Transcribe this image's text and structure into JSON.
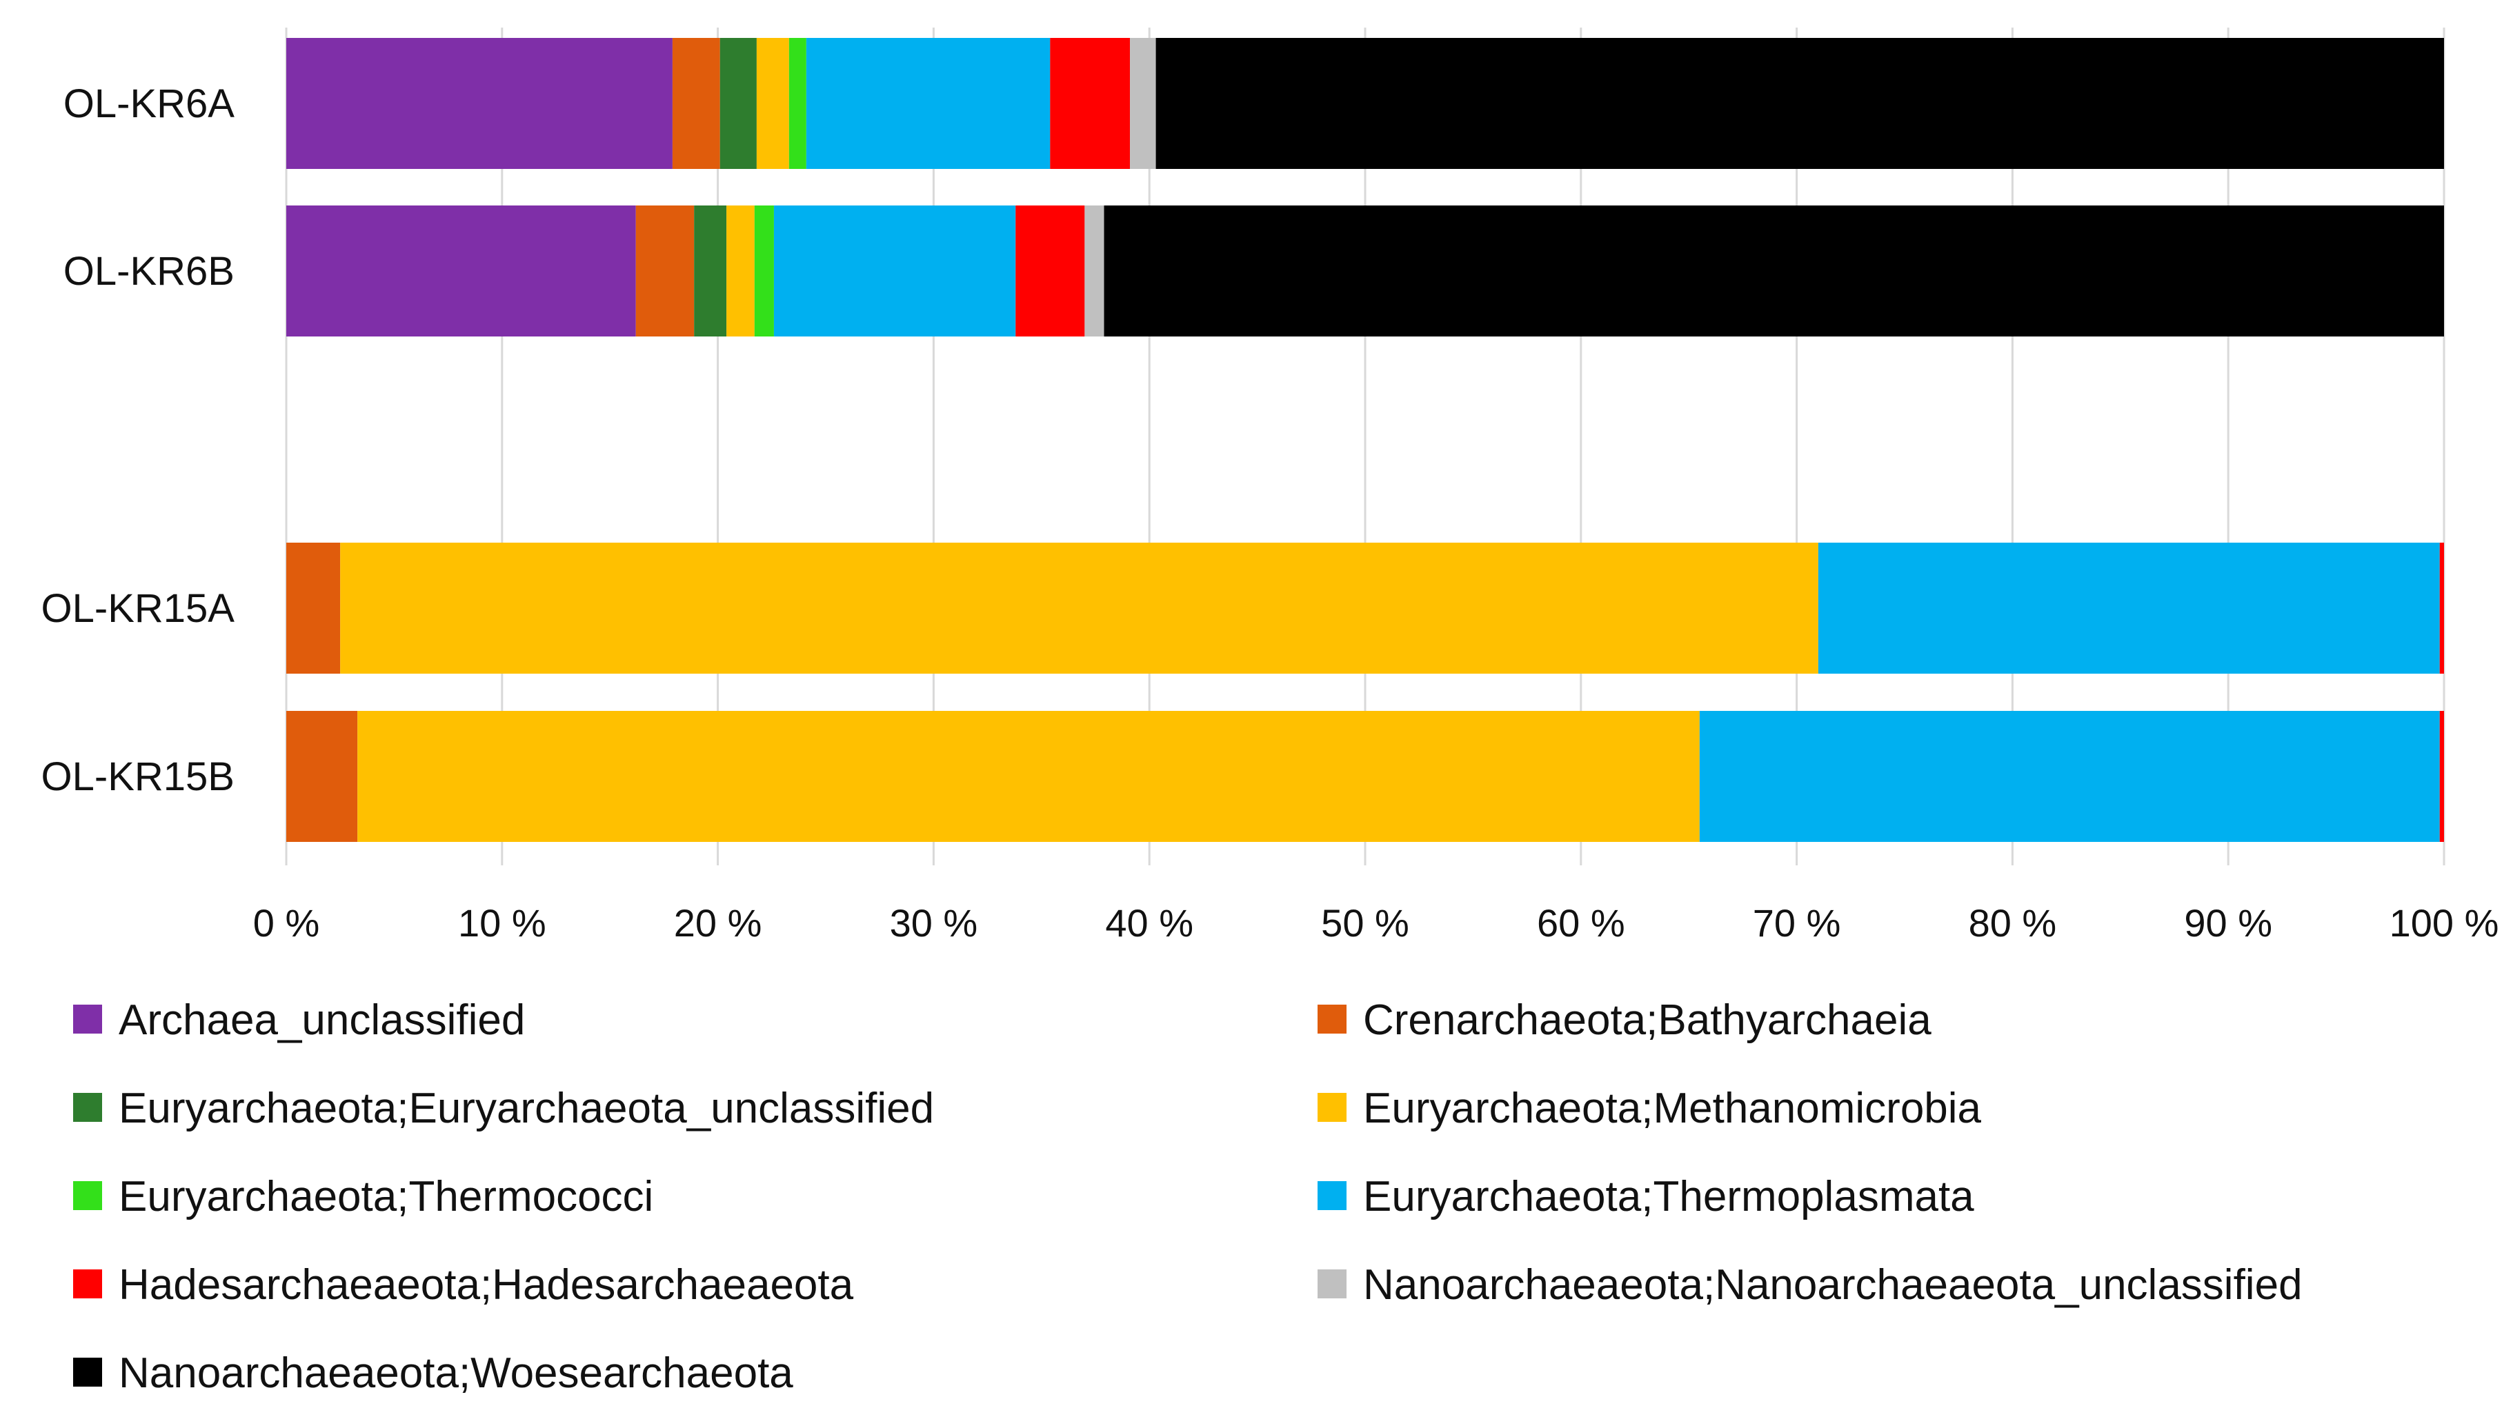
{
  "chart_data": {
    "type": "bar",
    "orientation": "horizontal",
    "stacked": true,
    "normalized": true,
    "title": "",
    "xlabel": "",
    "ylabel": "",
    "xlim": [
      0,
      100
    ],
    "grid": true,
    "legend_position": "bottom",
    "categories": [
      "OL-KR6A",
      "OL-KR6B",
      "OL-KR15A",
      "OL-KR15B"
    ],
    "x_ticks": [
      "0 %",
      "10 %",
      "20 %",
      "30 %",
      "40 %",
      "50 %",
      "60 %",
      "70 %",
      "80 %",
      "90 %",
      "100 %"
    ],
    "series": [
      {
        "name": "Archaea_unclassified",
        "color": "#7f2fa8",
        "values": [
          17.9,
          16.2,
          0,
          0
        ]
      },
      {
        "name": "Crenarchaeota;Bathyarchaeia",
        "color": "#e05c0c",
        "values": [
          2.2,
          2.7,
          2.5,
          3.3
        ]
      },
      {
        "name": "Euryarchaeota;Euryarchaeota_unclassified",
        "color": "#2e7d2e",
        "values": [
          1.7,
          1.5,
          0,
          0
        ]
      },
      {
        "name": "Euryarchaeota;Methanomicrobia",
        "color": "#ffc000",
        "values": [
          1.5,
          1.3,
          68.5,
          62.2
        ]
      },
      {
        "name": "Euryarchaeota;Thermococci",
        "color": "#33e01a",
        "values": [
          0.8,
          0.9,
          0,
          0
        ]
      },
      {
        "name": "Euryarchaeota;Thermoplasmata",
        "color": "#00b0f0",
        "values": [
          11.3,
          11.2,
          28.8,
          34.3
        ]
      },
      {
        "name": "Hadesarchaeaeota;Hadesarchaeaeota",
        "color": "#ff0000",
        "values": [
          3.7,
          3.2,
          0.2,
          0.2
        ]
      },
      {
        "name": "Nanoarchaeaeota;Nanoarchaeaeota_unclassified",
        "color": "#c0c0c0",
        "values": [
          1.2,
          0.9,
          0,
          0
        ]
      },
      {
        "name": "Nanoarchaeaeota;Woesearchaeota",
        "color": "#000000",
        "values": [
          59.7,
          62.1,
          0,
          0
        ]
      }
    ]
  }
}
